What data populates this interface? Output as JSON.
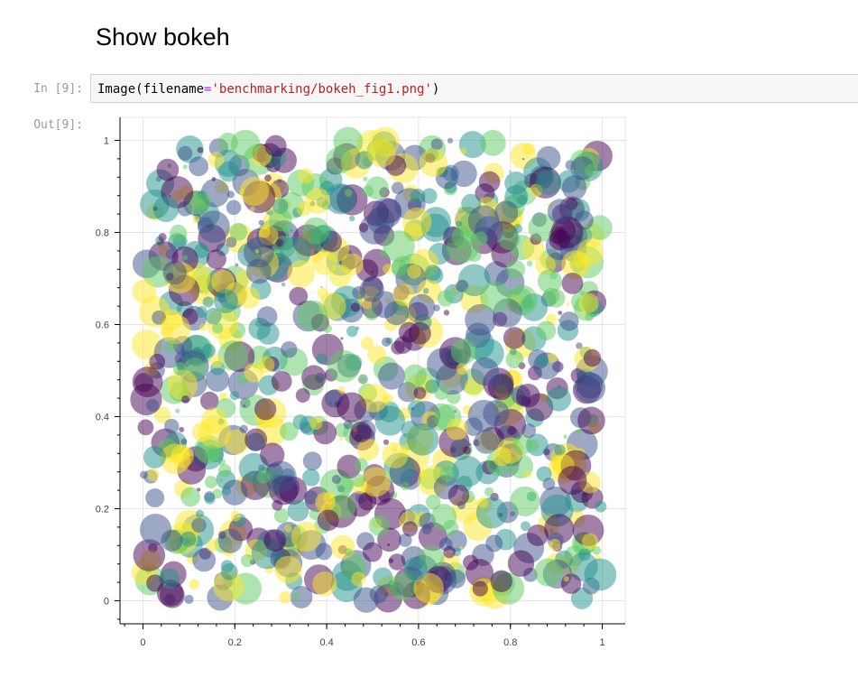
{
  "section_heading": "Show bokeh",
  "cell_in": {
    "prompt": "In [9]:",
    "code": {
      "func": "Image",
      "open": "(",
      "kw": "filename",
      "eq": "=",
      "str": "'benchmarking/bokeh_fig1.png'",
      "close": ")"
    }
  },
  "cell_out": {
    "prompt": "Out[9]:"
  },
  "chart_data": {
    "type": "scatter",
    "title": "",
    "xlabel": "",
    "ylabel": "",
    "xlim": [
      -0.05,
      1.05
    ],
    "ylim": [
      -0.05,
      1.05
    ],
    "xticks": [
      "0",
      "0.2",
      "0.4",
      "0.6",
      "0.8",
      "1"
    ],
    "xtick_values": [
      0,
      0.2,
      0.4,
      0.6,
      0.8,
      1
    ],
    "yticks": [
      "0",
      "0.2",
      "0.4",
      "0.6",
      "0.8",
      "1"
    ],
    "ytick_values": [
      0,
      0.2,
      0.4,
      0.6,
      0.8,
      1
    ],
    "grid": true,
    "point_count": 1000,
    "point_alpha": 0.5,
    "palette": [
      "#440154",
      "#3b528b",
      "#21918c",
      "#5ec962",
      "#fde725"
    ],
    "points_note": "Random bubbles uniformly spread over [0,1]x[0,1] with varying radius and viridis colors"
  }
}
